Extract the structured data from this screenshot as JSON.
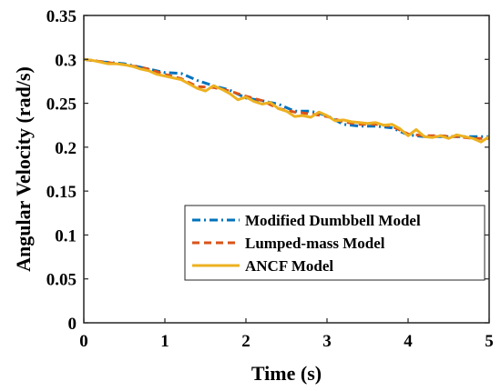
{
  "chart_data": {
    "type": "line",
    "title": "",
    "xlabel": "Time (s)",
    "ylabel": "Angular Velocity (rad/s)",
    "xlim": [
      0,
      5
    ],
    "ylim": [
      0,
      0.35
    ],
    "xticks": [
      "0",
      "1",
      "2",
      "3",
      "4",
      "5"
    ],
    "yticks": [
      "0",
      "0.05",
      "0.1",
      "0.15",
      "0.2",
      "0.25",
      "0.3",
      "0.35"
    ],
    "grid": false,
    "legend_position": "bottom-right",
    "series": [
      {
        "name": "Modified Dumbbell Model",
        "color": "#0072BD",
        "style": "dash-dot",
        "x": [
          0,
          0.25,
          0.5,
          0.75,
          1.0,
          1.2,
          1.4,
          1.6,
          1.8,
          2.0,
          2.2,
          2.4,
          2.6,
          2.8,
          3.0,
          3.2,
          3.4,
          3.6,
          3.8,
          4.0,
          4.2,
          4.4,
          4.6,
          4.8,
          5.0
        ],
        "values": [
          0.3,
          0.297,
          0.295,
          0.29,
          0.285,
          0.284,
          0.276,
          0.27,
          0.265,
          0.256,
          0.253,
          0.249,
          0.241,
          0.241,
          0.236,
          0.226,
          0.224,
          0.224,
          0.222,
          0.214,
          0.212,
          0.212,
          0.212,
          0.212,
          0.212
        ]
      },
      {
        "name": "Lumped-mass Model",
        "color": "#D95319",
        "style": "dashed",
        "x": [
          0,
          0.25,
          0.5,
          0.75,
          1.0,
          1.2,
          1.4,
          1.6,
          1.8,
          2.0,
          2.2,
          2.4,
          2.6,
          2.8,
          3.0,
          3.2,
          3.4,
          3.6,
          3.8,
          4.0,
          4.2,
          4.4,
          4.6,
          4.8,
          5.0
        ],
        "values": [
          0.3,
          0.297,
          0.294,
          0.29,
          0.283,
          0.278,
          0.269,
          0.268,
          0.264,
          0.258,
          0.253,
          0.244,
          0.24,
          0.238,
          0.235,
          0.229,
          0.226,
          0.226,
          0.224,
          0.215,
          0.213,
          0.213,
          0.212,
          0.21,
          0.21
        ]
      },
      {
        "name": "ANCF Model",
        "color": "#EDB120",
        "style": "solid",
        "x": [
          0,
          0.1,
          0.2,
          0.3,
          0.4,
          0.5,
          0.6,
          0.7,
          0.8,
          0.9,
          1.0,
          1.1,
          1.2,
          1.3,
          1.4,
          1.5,
          1.6,
          1.7,
          1.8,
          1.9,
          2.0,
          2.1,
          2.2,
          2.3,
          2.4,
          2.5,
          2.6,
          2.7,
          2.8,
          2.9,
          3.0,
          3.1,
          3.2,
          3.3,
          3.4,
          3.5,
          3.6,
          3.7,
          3.8,
          3.9,
          4.0,
          4.1,
          4.2,
          4.3,
          4.4,
          4.5,
          4.6,
          4.7,
          4.8,
          4.9,
          5.0
        ],
        "values": [
          0.3,
          0.299,
          0.297,
          0.295,
          0.295,
          0.294,
          0.292,
          0.289,
          0.287,
          0.283,
          0.281,
          0.279,
          0.277,
          0.272,
          0.267,
          0.264,
          0.27,
          0.266,
          0.261,
          0.254,
          0.257,
          0.252,
          0.249,
          0.251,
          0.244,
          0.241,
          0.235,
          0.236,
          0.234,
          0.24,
          0.236,
          0.23,
          0.231,
          0.229,
          0.228,
          0.227,
          0.228,
          0.225,
          0.226,
          0.221,
          0.213,
          0.22,
          0.212,
          0.211,
          0.213,
          0.21,
          0.214,
          0.212,
          0.21,
          0.206,
          0.212
        ]
      }
    ]
  }
}
